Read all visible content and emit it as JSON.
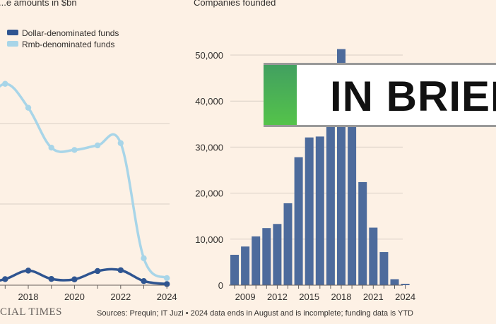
{
  "chart_data": [
    {
      "type": "line",
      "title": "...e amounts in $bn",
      "x": [
        2016,
        2017,
        2018,
        2019,
        2020,
        2021,
        2022,
        2023,
        2024
      ],
      "series": [
        {
          "name": "Dollar-denominated funds",
          "color": "#2f5591",
          "values": [
            0.5,
            2.5,
            6.5,
            2.6,
            2.4,
            6.3,
            6.7,
            1.6,
            0.2
          ]
        },
        {
          "name": "Rmb-denominated funds",
          "color": "#a8d5e8",
          "values": [
            77,
            88,
            77.5,
            60,
            59,
            61,
            62,
            11.5,
            2.8
          ]
        }
      ],
      "xticks": [
        "2018",
        "2020",
        "2022",
        "2024"
      ],
      "ylim": [
        0,
        100
      ]
    },
    {
      "type": "bar",
      "title": "Companies founded",
      "categories": [
        2008,
        2009,
        2010,
        2011,
        2012,
        2013,
        2014,
        2015,
        2016,
        2017,
        2018,
        2019,
        2020,
        2021,
        2022,
        2023,
        2024
      ],
      "values": [
        6600,
        8400,
        10600,
        12400,
        13300,
        17800,
        27800,
        32100,
        32300,
        36000,
        51300,
        38000,
        22400,
        12500,
        7200,
        1300,
        300
      ],
      "color": "#4d6b9c",
      "yticks": [
        "0",
        "10,000",
        "20,000",
        "30,000",
        "40,000",
        "50,000"
      ],
      "xticks": [
        "2009",
        "2012",
        "2015",
        "2018",
        "2021",
        "2024"
      ],
      "ylim": [
        0,
        50000
      ]
    }
  ],
  "footer": {
    "source": "Sources: Prequin; IT Juzi • 2024 data ends in August and is incomplete; funding data is YTD",
    "brand": "CIAL TIMES"
  },
  "banner": {
    "text": "IN BRIEF"
  }
}
